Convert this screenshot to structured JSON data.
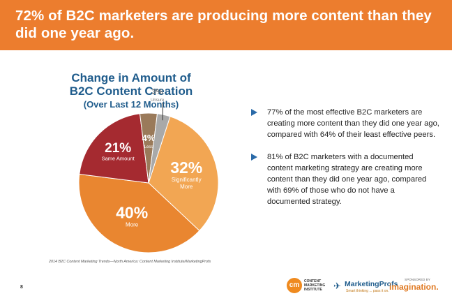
{
  "header": {
    "title": "72% of B2C marketers are producing more content than they did one year ago."
  },
  "chart_data": {
    "type": "pie",
    "title": "Change in Amount of B2C Content Creation",
    "subtitle": "(Over Last 12 Months)",
    "slices": [
      {
        "label": "Significantly More",
        "value": 32,
        "pct_text": "32%",
        "color": "#f2a653"
      },
      {
        "label": "More",
        "value": 40,
        "pct_text": "40%",
        "color": "#e98630"
      },
      {
        "label": "Same Amount",
        "value": 21,
        "pct_text": "21%",
        "color": "#a52a30"
      },
      {
        "label": "Less",
        "value": 4,
        "pct_text": "4%",
        "color": "#9a7a5a"
      },
      {
        "label": "Unsure",
        "value": 3,
        "pct_text": "3%",
        "color": "#a9a9a9"
      }
    ]
  },
  "bullets": [
    "77% of the most effective B2C marketers are creating more content than they did one year ago, compared with 64% of their least effective peers.",
    "81% of B2C marketers with a documented content marketing strategy are creating more content than they did one year ago, compared with 69% of those who do not have a documented strategy."
  ],
  "footer": {
    "source": "2014 B2C Content Marketing Trends—North America: Content Marketing Institute/MarketingProfs",
    "page_number": "8",
    "logo_cmi_mark": "cm",
    "logo_cmi_text": "CONTENT MARKETING INSTITUTE",
    "logo_mp_name": "MarketingProfs",
    "logo_mp_tagline": "Smart thinking ... pass it on.",
    "sponsored_by": "SPONSORED BY",
    "sponsor_name": "imagination."
  }
}
